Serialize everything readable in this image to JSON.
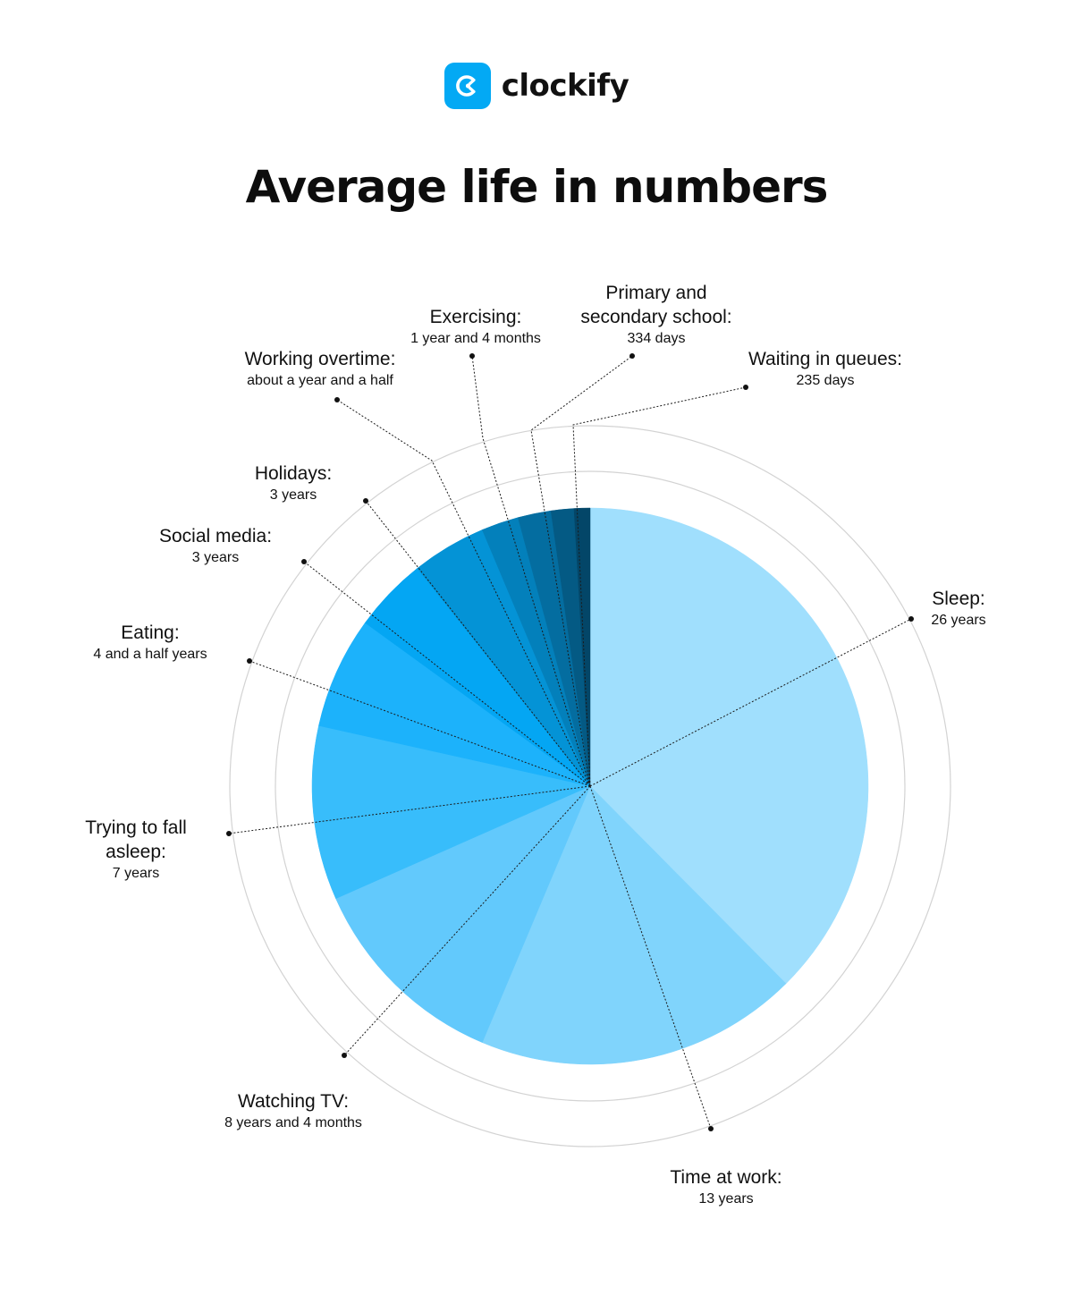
{
  "brand": {
    "name": "clockify",
    "logo_color": "#03A9F4",
    "logo_icon": "clockify-icon"
  },
  "title": "Average life in numbers",
  "chart_data": {
    "type": "pie",
    "title": "Average life in numbers",
    "unit": "years",
    "rings": 3,
    "slices": [
      {
        "name": "Sleep:",
        "label": "26 years",
        "value": 26,
        "color": "#A0DFFD"
      },
      {
        "name": "Time at work:",
        "label": "13 years",
        "value": 13,
        "color": "#80D4FC"
      },
      {
        "name": "Watching TV:",
        "label": "8 years and 4 months",
        "value": 8.33,
        "color": "#62C9FC"
      },
      {
        "name": "Trying to fall asleep:",
        "label": "7 years",
        "value": 7,
        "color": "#38BDFB"
      },
      {
        "name": "Eating:",
        "label": "4 and a half years",
        "value": 4.5,
        "color": "#1CB2FB"
      },
      {
        "name": "Social media:",
        "label": "3 years",
        "value": 3,
        "color": "#04A6F3"
      },
      {
        "name": "Holidays:",
        "label": "3 years",
        "value": 3,
        "color": "#0493D6"
      },
      {
        "name": "Working overtime:",
        "label": "about a year and a half",
        "value": 1.5,
        "color": "#0380BB"
      },
      {
        "name": "Exercising:",
        "label": "1 year and 4 months",
        "value": 1.33,
        "color": "#046DA0"
      },
      {
        "name": "Primary and secondary school:",
        "label": "334 days",
        "value": 0.92,
        "color": "#045A84"
      },
      {
        "name": "Waiting in queues:",
        "label": "235 days",
        "value": 0.64,
        "color": "#034668"
      }
    ]
  }
}
